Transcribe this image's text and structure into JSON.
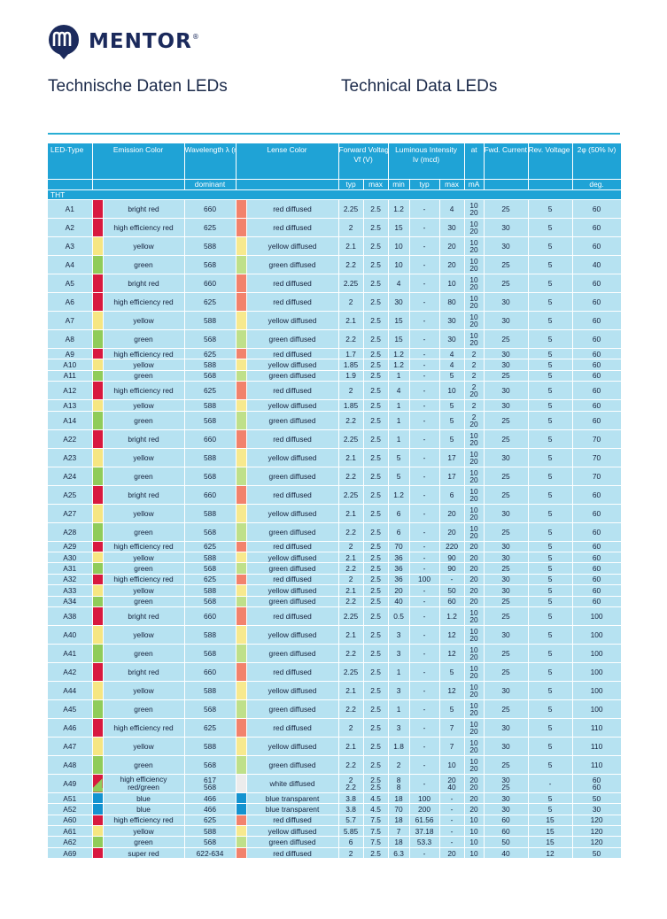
{
  "brand": {
    "name": "MENTOR",
    "registered": "®"
  },
  "titles": {
    "de": "Technische Daten LEDs",
    "en": "Technical Data LEDs"
  },
  "colors": {
    "accent": "#1fa3d6",
    "row_bg": "#b6e2f1",
    "bright red": "#d8193f",
    "high efficiency red": "#d8193f",
    "super red": "#d8193f",
    "yellow": "#f6e682",
    "green": "#90cc5a",
    "blue": "#1393d0",
    "red diffused": "#f2826c",
    "yellow diffused": "#f7e98e",
    "green diffused": "#bfe08a",
    "white diffused": "#ececec",
    "blue transparent": "#1393d0"
  },
  "header": {
    "led_type": "LED-Type",
    "emission": "Emission Color",
    "wavelength": "Wavelength λ (nm)",
    "wavelength_sub": "dominant",
    "lense": "Lense Color",
    "fwd_voltage": "Forward Voltage",
    "fwd_voltage_sym": "Vf (V)",
    "lum": "Luminous Intensity",
    "lum_sym": "Iv (mcd)",
    "at": "at",
    "fwd_current": "Fwd. Current If max (mA)",
    "rev_voltage": "Rev. Voltage Vr (V)",
    "angle": "2φ (50% Iv)",
    "typ": "typ",
    "max": "max",
    "min": "min",
    "ma": "mA",
    "deg": "deg."
  },
  "section": "THT",
  "rows": [
    {
      "type": "A1",
      "emission": "bright red",
      "wl": "660",
      "lens": "red diffused",
      "vtyp": "2.25",
      "vmax": "2.5",
      "imin": "1.2",
      "ityp": "-",
      "imax": "4",
      "at": [
        "10",
        "20"
      ],
      "if": "25",
      "vr": "5",
      "deg": "60"
    },
    {
      "type": "A2",
      "emission": "high efficiency red",
      "wl": "625",
      "lens": "red diffused",
      "vtyp": "2",
      "vmax": "2.5",
      "imin": "15",
      "ityp": "-",
      "imax": "30",
      "at": [
        "10",
        "20"
      ],
      "if": "30",
      "vr": "5",
      "deg": "60"
    },
    {
      "type": "A3",
      "emission": "yellow",
      "wl": "588",
      "lens": "yellow diffused",
      "vtyp": "2.1",
      "vmax": "2.5",
      "imin": "10",
      "ityp": "-",
      "imax": "20",
      "at": [
        "10",
        "20"
      ],
      "if": "30",
      "vr": "5",
      "deg": "60"
    },
    {
      "type": "A4",
      "emission": "green",
      "wl": "568",
      "lens": "green diffused",
      "vtyp": "2.2",
      "vmax": "2.5",
      "imin": "10",
      "ityp": "-",
      "imax": "20",
      "at": [
        "10",
        "20"
      ],
      "if": "25",
      "vr": "5",
      "deg": "40"
    },
    {
      "type": "A5",
      "emission": "bright red",
      "wl": "660",
      "lens": "red diffused",
      "vtyp": "2.25",
      "vmax": "2.5",
      "imin": "4",
      "ityp": "-",
      "imax": "10",
      "at": [
        "10",
        "20"
      ],
      "if": "25",
      "vr": "5",
      "deg": "60"
    },
    {
      "type": "A6",
      "emission": "high efficiency red",
      "wl": "625",
      "lens": "red diffused",
      "vtyp": "2",
      "vmax": "2.5",
      "imin": "30",
      "ityp": "-",
      "imax": "80",
      "at": [
        "10",
        "20"
      ],
      "if": "30",
      "vr": "5",
      "deg": "60"
    },
    {
      "type": "A7",
      "emission": "yellow",
      "wl": "588",
      "lens": "yellow diffused",
      "vtyp": "2.1",
      "vmax": "2.5",
      "imin": "15",
      "ityp": "-",
      "imax": "30",
      "at": [
        "10",
        "20"
      ],
      "if": "30",
      "vr": "5",
      "deg": "60"
    },
    {
      "type": "A8",
      "emission": "green",
      "wl": "568",
      "lens": "green diffused",
      "vtyp": "2.2",
      "vmax": "2.5",
      "imin": "15",
      "ityp": "-",
      "imax": "30",
      "at": [
        "10",
        "20"
      ],
      "if": "25",
      "vr": "5",
      "deg": "60"
    },
    {
      "type": "A9",
      "emission": "high efficiency red",
      "wl": "625",
      "lens": "red diffused",
      "vtyp": "1.7",
      "vmax": "2.5",
      "imin": "1.2",
      "ityp": "-",
      "imax": "4",
      "at": [
        "2"
      ],
      "if": "30",
      "vr": "5",
      "deg": "60"
    },
    {
      "type": "A10",
      "emission": "yellow",
      "wl": "588",
      "lens": "yellow diffused",
      "vtyp": "1.85",
      "vmax": "2.5",
      "imin": "1.2",
      "ityp": "-",
      "imax": "4",
      "at": [
        "2"
      ],
      "if": "30",
      "vr": "5",
      "deg": "60"
    },
    {
      "type": "A11",
      "emission": "green",
      "wl": "568",
      "lens": "green diffused",
      "vtyp": "1.9",
      "vmax": "2.5",
      "imin": "1",
      "ityp": "-",
      "imax": "5",
      "at": [
        "2"
      ],
      "if": "25",
      "vr": "5",
      "deg": "60"
    },
    {
      "type": "A12",
      "emission": "high efficiency red",
      "wl": "625",
      "lens": "red diffused",
      "vtyp": "2",
      "vmax": "2.5",
      "imin": "4",
      "ityp": "-",
      "imax": "10",
      "at": [
        "2",
        "20"
      ],
      "if": "30",
      "vr": "5",
      "deg": "60"
    },
    {
      "type": "A13",
      "emission": "yellow",
      "wl": "588",
      "lens": "yellow diffused",
      "vtyp": "1.85",
      "vmax": "2.5",
      "imin": "1",
      "ityp": "-",
      "imax": "5",
      "at": [
        "2"
      ],
      "if": "30",
      "vr": "5",
      "deg": "60"
    },
    {
      "type": "A14",
      "emission": "green",
      "wl": "568",
      "lens": "green diffused",
      "vtyp": "2.2",
      "vmax": "2.5",
      "imin": "1",
      "ityp": "-",
      "imax": "5",
      "at": [
        "2",
        "20"
      ],
      "if": "25",
      "vr": "5",
      "deg": "60"
    },
    {
      "type": "A22",
      "emission": "bright red",
      "wl": "660",
      "lens": "red diffused",
      "vtyp": "2.25",
      "vmax": "2.5",
      "imin": "1",
      "ityp": "-",
      "imax": "5",
      "at": [
        "10",
        "20"
      ],
      "if": "25",
      "vr": "5",
      "deg": "70"
    },
    {
      "type": "A23",
      "emission": "yellow",
      "wl": "588",
      "lens": "yellow diffused",
      "vtyp": "2.1",
      "vmax": "2.5",
      "imin": "5",
      "ityp": "-",
      "imax": "17",
      "at": [
        "10",
        "20"
      ],
      "if": "30",
      "vr": "5",
      "deg": "70"
    },
    {
      "type": "A24",
      "emission": "green",
      "wl": "568",
      "lens": "green diffused",
      "vtyp": "2.2",
      "vmax": "2.5",
      "imin": "5",
      "ityp": "-",
      "imax": "17",
      "at": [
        "10",
        "20"
      ],
      "if": "25",
      "vr": "5",
      "deg": "70"
    },
    {
      "type": "A25",
      "emission": "bright red",
      "wl": "660",
      "lens": "red diffused",
      "vtyp": "2.25",
      "vmax": "2.5",
      "imin": "1.2",
      "ityp": "-",
      "imax": "6",
      "at": [
        "10",
        "20"
      ],
      "if": "25",
      "vr": "5",
      "deg": "60"
    },
    {
      "type": "A27",
      "emission": "yellow",
      "wl": "588",
      "lens": "yellow diffused",
      "vtyp": "2.1",
      "vmax": "2.5",
      "imin": "6",
      "ityp": "-",
      "imax": "20",
      "at": [
        "10",
        "20"
      ],
      "if": "30",
      "vr": "5",
      "deg": "60"
    },
    {
      "type": "A28",
      "emission": "green",
      "wl": "568",
      "lens": "green diffused",
      "vtyp": "2.2",
      "vmax": "2.5",
      "imin": "6",
      "ityp": "-",
      "imax": "20",
      "at": [
        "10",
        "20"
      ],
      "if": "25",
      "vr": "5",
      "deg": "60"
    },
    {
      "type": "A29",
      "emission": "high efficiency red",
      "wl": "625",
      "lens": "red diffused",
      "vtyp": "2",
      "vmax": "2.5",
      "imin": "70",
      "ityp": "-",
      "imax": "220",
      "at": [
        "20"
      ],
      "if": "30",
      "vr": "5",
      "deg": "60"
    },
    {
      "type": "A30",
      "emission": "yellow",
      "wl": "588",
      "lens": "yellow diffused",
      "vtyp": "2.1",
      "vmax": "2.5",
      "imin": "36",
      "ityp": "-",
      "imax": "90",
      "at": [
        "20"
      ],
      "if": "30",
      "vr": "5",
      "deg": "60"
    },
    {
      "type": "A31",
      "emission": "green",
      "wl": "568",
      "lens": "green diffused",
      "vtyp": "2.2",
      "vmax": "2.5",
      "imin": "36",
      "ityp": "-",
      "imax": "90",
      "at": [
        "20"
      ],
      "if": "25",
      "vr": "5",
      "deg": "60"
    },
    {
      "type": "A32",
      "emission": "high efficiency red",
      "wl": "625",
      "lens": "red diffused",
      "vtyp": "2",
      "vmax": "2.5",
      "imin": "36",
      "ityp": "100",
      "imax": "-",
      "at": [
        "20"
      ],
      "if": "30",
      "vr": "5",
      "deg": "60"
    },
    {
      "type": "A33",
      "emission": "yellow",
      "wl": "588",
      "lens": "yellow diffused",
      "vtyp": "2.1",
      "vmax": "2.5",
      "imin": "20",
      "ityp": "-",
      "imax": "50",
      "at": [
        "20"
      ],
      "if": "30",
      "vr": "5",
      "deg": "60"
    },
    {
      "type": "A34",
      "emission": "green",
      "wl": "568",
      "lens": "green diffused",
      "vtyp": "2.2",
      "vmax": "2.5",
      "imin": "40",
      "ityp": "-",
      "imax": "60",
      "at": [
        "20"
      ],
      "if": "25",
      "vr": "5",
      "deg": "60"
    },
    {
      "type": "A38",
      "emission": "bright red",
      "wl": "660",
      "lens": "red diffused",
      "vtyp": "2.25",
      "vmax": "2.5",
      "imin": "0.5",
      "ityp": "-",
      "imax": "1.2",
      "at": [
        "10",
        "20"
      ],
      "if": "25",
      "vr": "5",
      "deg": "100"
    },
    {
      "type": "A40",
      "emission": "yellow",
      "wl": "588",
      "lens": "yellow diffused",
      "vtyp": "2.1",
      "vmax": "2.5",
      "imin": "3",
      "ityp": "-",
      "imax": "12",
      "at": [
        "10",
        "20"
      ],
      "if": "30",
      "vr": "5",
      "deg": "100"
    },
    {
      "type": "A41",
      "emission": "green",
      "wl": "568",
      "lens": "green diffused",
      "vtyp": "2.2",
      "vmax": "2.5",
      "imin": "3",
      "ityp": "-",
      "imax": "12",
      "at": [
        "10",
        "20"
      ],
      "if": "25",
      "vr": "5",
      "deg": "100"
    },
    {
      "type": "A42",
      "emission": "bright red",
      "wl": "660",
      "lens": "red diffused",
      "vtyp": "2.25",
      "vmax": "2.5",
      "imin": "1",
      "ityp": "-",
      "imax": "5",
      "at": [
        "10",
        "20"
      ],
      "if": "25",
      "vr": "5",
      "deg": "100"
    },
    {
      "type": "A44",
      "emission": "yellow",
      "wl": "588",
      "lens": "yellow diffused",
      "vtyp": "2.1",
      "vmax": "2.5",
      "imin": "3",
      "ityp": "-",
      "imax": "12",
      "at": [
        "10",
        "20"
      ],
      "if": "30",
      "vr": "5",
      "deg": "100"
    },
    {
      "type": "A45",
      "emission": "green",
      "wl": "568",
      "lens": "green diffused",
      "vtyp": "2.2",
      "vmax": "2.5",
      "imin": "1",
      "ityp": "-",
      "imax": "5",
      "at": [
        "10",
        "20"
      ],
      "if": "25",
      "vr": "5",
      "deg": "100"
    },
    {
      "type": "A46",
      "emission": "high efficiency red",
      "wl": "625",
      "lens": "red diffused",
      "vtyp": "2",
      "vmax": "2.5",
      "imin": "3",
      "ityp": "-",
      "imax": "7",
      "at": [
        "10",
        "20"
      ],
      "if": "30",
      "vr": "5",
      "deg": "110"
    },
    {
      "type": "A47",
      "emission": "yellow",
      "wl": "588",
      "lens": "yellow diffused",
      "vtyp": "2.1",
      "vmax": "2.5",
      "imin": "1.8",
      "ityp": "-",
      "imax": "7",
      "at": [
        "10",
        "20"
      ],
      "if": "30",
      "vr": "5",
      "deg": "110"
    },
    {
      "type": "A48",
      "emission": "green",
      "wl": "568",
      "lens": "green diffused",
      "vtyp": "2.2",
      "vmax": "2.5",
      "imin": "2",
      "ityp": "-",
      "imax": "10",
      "at": [
        "10",
        "20"
      ],
      "if": "25",
      "vr": "5",
      "deg": "110"
    },
    {
      "type": "A49",
      "emission": "high efficiency red/green",
      "wl": "617 568",
      "lens": "white diffused",
      "vtyp": "2 2.2",
      "vmax": "2.5 2.5",
      "imin": "8 8",
      "ityp": "-",
      "imax": "20 40",
      "at": [
        "20",
        "20"
      ],
      "if": "30 25",
      "vr": "-",
      "deg": "60 60",
      "bicolor": true
    },
    {
      "type": "A51",
      "emission": "blue",
      "wl": "466",
      "lens": "blue transparent",
      "vtyp": "3.8",
      "vmax": "4.5",
      "imin": "18",
      "ityp": "100",
      "imax": "-",
      "at": [
        "20"
      ],
      "if": "30",
      "vr": "5",
      "deg": "50"
    },
    {
      "type": "A52",
      "emission": "blue",
      "wl": "466",
      "lens": "blue transparent",
      "vtyp": "3.8",
      "vmax": "4.5",
      "imin": "70",
      "ityp": "200",
      "imax": "-",
      "at": [
        "20"
      ],
      "if": "30",
      "vr": "5",
      "deg": "30"
    },
    {
      "type": "A60",
      "emission": "high efficiency red",
      "wl": "625",
      "lens": "red diffused",
      "vtyp": "5.7",
      "vmax": "7.5",
      "imin": "18",
      "ityp": "61.56",
      "imax": "-",
      "at": [
        "10"
      ],
      "if": "60",
      "vr": "15",
      "deg": "120"
    },
    {
      "type": "A61",
      "emission": "yellow",
      "wl": "588",
      "lens": "yellow diffused",
      "vtyp": "5.85",
      "vmax": "7.5",
      "imin": "7",
      "ityp": "37.18",
      "imax": "-",
      "at": [
        "10"
      ],
      "if": "60",
      "vr": "15",
      "deg": "120"
    },
    {
      "type": "A62",
      "emission": "green",
      "wl": "568",
      "lens": "green diffused",
      "vtyp": "6",
      "vmax": "7.5",
      "imin": "18",
      "ityp": "53.3",
      "imax": "-",
      "at": [
        "10"
      ],
      "if": "50",
      "vr": "15",
      "deg": "120"
    },
    {
      "type": "A69",
      "emission": "super red",
      "wl": "622-634",
      "lens": "red diffused",
      "vtyp": "2",
      "vmax": "2.5",
      "imin": "6.3",
      "ityp": "-",
      "imax": "20",
      "at": [
        "10"
      ],
      "if": "40",
      "vr": "12",
      "deg": "50"
    }
  ]
}
